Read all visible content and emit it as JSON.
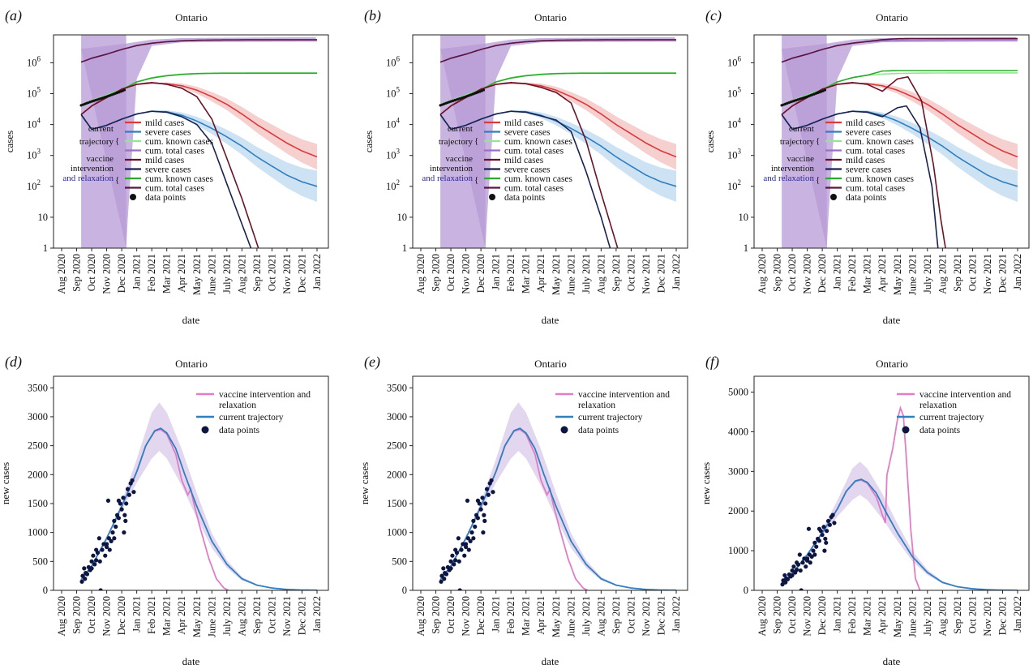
{
  "figure": {
    "panels": [
      {
        "letter": "(a)",
        "title": "Ontario"
      },
      {
        "letter": "(b)",
        "title": "Ontario"
      },
      {
        "letter": "(c)",
        "title": "Ontario"
      },
      {
        "letter": "(d)",
        "title": "Ontario"
      },
      {
        "letter": "(e)",
        "title": "Ontario"
      },
      {
        "letter": "(f)",
        "title": "Ontario"
      }
    ],
    "top_legend": {
      "current_label": [
        "current",
        "trajectory"
      ],
      "vaccine_label": [
        "vaccine",
        "intervention",
        "and relaxation"
      ],
      "current_entries": [
        {
          "label": "mild cases",
          "color": "#d93a3a"
        },
        {
          "label": "severe cases",
          "color": "#2f7fc1"
        },
        {
          "label": "cum. known cases",
          "color": "#8fe88f"
        },
        {
          "label": "cum. total cases",
          "color": "#9b6fc4"
        }
      ],
      "vaccine_entries": [
        {
          "label": "mild cases",
          "color": "#6b1228"
        },
        {
          "label": "severe cases",
          "color": "#1a2350"
        },
        {
          "label": "cum. known cases",
          "color": "#2eaa2e"
        },
        {
          "label": "cum. total cases",
          "color": "#5a1640"
        }
      ],
      "data_label": "data points"
    },
    "bottom_legend": {
      "entries": [
        {
          "label": "vaccine intervention and",
          "label2": "relaxation",
          "color": "#e27cc7"
        },
        {
          "label": "current trajectory",
          "label2": "",
          "color": "#2f7fc1"
        }
      ],
      "data_label": "data points"
    }
  },
  "chart_data": [
    {
      "panel": "(a)",
      "type": "line",
      "title": "Ontario",
      "xlabel": "date",
      "ylabel": "cases",
      "yscale": "log",
      "x_ticks": [
        "Aug 2020",
        "Sep 2020",
        "Oct 2020",
        "Nov 2020",
        "Dec 2020",
        "Jan 2021",
        "Feb 2021",
        "Mar 2021",
        "Apr 2021",
        "May 2021",
        "June 2021",
        "July 2021",
        "Aug 2021",
        "Sep 2021",
        "Oct 2021",
        "Nov 2021",
        "Dec 2021",
        "Jan 2022"
      ],
      "y_ticks": [
        "1",
        "10",
        "10²",
        "10³",
        "10⁴",
        "10⁵",
        "10⁶"
      ],
      "ylim": [
        1,
        8000000
      ],
      "intervention_shade": {
        "x_range": [
          "Sep 2020",
          "Dec 2020"
        ],
        "color": "#b79ad6"
      },
      "x_month_index": [
        1.3,
        2,
        3,
        4,
        5,
        6,
        7,
        8,
        9,
        10,
        11,
        12,
        13,
        14,
        15,
        16,
        17
      ],
      "series": [
        {
          "name": "mild cases",
          "group": "current trajectory",
          "y": [
            21000,
            40000,
            75000,
            140000,
            200000,
            220000,
            210000,
            180000,
            130000,
            80000,
            45000,
            22000,
            10000,
            5000,
            2500,
            1400,
            900
          ]
        },
        {
          "name": "severe cases",
          "group": "current trajectory",
          "y": [
            21000,
            7000,
            9500,
            15000,
            22000,
            27000,
            26000,
            20000,
            13000,
            7500,
            4000,
            2000,
            900,
            450,
            230,
            140,
            100
          ]
        },
        {
          "name": "cum. known cases",
          "group": "current trajectory",
          "y": [
            45000,
            60000,
            90000,
            140000,
            240000,
            330000,
            390000,
            430000,
            450000,
            460000,
            465000,
            468000,
            470000,
            470000,
            470000,
            470000,
            470000
          ]
        },
        {
          "name": "cum. total cases",
          "group": "current trajectory",
          "y": [
            1050000,
            1400000,
            1900000,
            2700000,
            3600000,
            4300000,
            4800000,
            5100000,
            5300000,
            5400000,
            5450000,
            5480000,
            5500000,
            5500000,
            5500000,
            5500000,
            5500000
          ]
        },
        {
          "name": "mild cases",
          "group": "vaccine intervention and relaxation",
          "y": [
            21000,
            40000,
            75000,
            140000,
            200000,
            230000,
            200000,
            150000,
            80000,
            15000,
            800,
            40,
            1.2
          ]
        },
        {
          "name": "severe cases",
          "group": "vaccine intervention and relaxation",
          "y": [
            21000,
            7000,
            9500,
            15000,
            22000,
            27000,
            25000,
            18000,
            10000,
            2500,
            120,
            6,
            0.9
          ]
        },
        {
          "name": "cum. known cases",
          "group": "vaccine intervention and relaxation",
          "y": [
            40000,
            55000,
            85000,
            135000,
            240000,
            320000,
            380000,
            420000,
            445000,
            455000,
            460000,
            460000,
            460000,
            460000,
            460000,
            460000,
            460000
          ]
        },
        {
          "name": "cum. total cases",
          "group": "vaccine intervention and relaxation",
          "y": [
            1050000,
            1400000,
            1900000,
            2700000,
            3600000,
            4300000,
            4800000,
            5150000,
            5350000,
            5450000,
            5500000,
            5520000,
            5530000,
            5530000,
            5530000,
            5530000,
            5530000
          ]
        }
      ]
    },
    {
      "panel": "(b)",
      "type": "line",
      "title": "Ontario",
      "xlabel": "date",
      "ylabel": "cases",
      "yscale": "log",
      "x_ticks": [
        "Aug 2020",
        "Sep 2020",
        "Oct 2020",
        "Nov 2020",
        "Dec 2020",
        "Jan 2021",
        "Feb 2021",
        "Mar 2021",
        "Apr 2021",
        "May 2021",
        "June 2021",
        "July 2021",
        "Aug 2021",
        "Sep 2021",
        "Oct 2021",
        "Nov 2021",
        "Dec 2021",
        "Jan 2022"
      ],
      "y_ticks": [
        "1",
        "10",
        "10²",
        "10³",
        "10⁴",
        "10⁵",
        "10⁶"
      ],
      "ylim": [
        1,
        8000000
      ],
      "intervention_shade": {
        "x_range": [
          "Sep 2020",
          "Dec 2020"
        ],
        "color": "#b79ad6"
      },
      "note": "same as (a); vaccine curves decline from ~May 2021",
      "vaccine_severe_drop_to_1": "Aug 2021",
      "vaccine_mild_drop_to_1": "Sep 2021"
    },
    {
      "panel": "(c)",
      "type": "line",
      "title": "Ontario",
      "xlabel": "date",
      "ylabel": "cases",
      "yscale": "log",
      "x_ticks": [
        "Aug 2020",
        "Sep 2020",
        "Oct 2020",
        "Nov 2020",
        "Dec 2020",
        "Jan 2021",
        "Feb 2021",
        "Mar 2021",
        "Apr 2021",
        "May 2021",
        "June 2021",
        "July 2021",
        "Aug 2021",
        "Sep 2021",
        "Oct 2021",
        "Nov 2021",
        "Dec 2021",
        "Jan 2022"
      ],
      "y_ticks": [
        "1",
        "10",
        "10²",
        "10³",
        "10⁴",
        "10⁵",
        "10⁶"
      ],
      "ylim": [
        1,
        8000000
      ],
      "intervention_shade": {
        "x_range": [
          "Sep 2020",
          "Dec 2020"
        ],
        "color": "#b79ad6"
      },
      "note": "vaccine curves show a second peak near May 2021 (mild ~350000, severe ~40000) then drop to 1 by July/Aug 2021"
    },
    {
      "panel": "(d)",
      "type": "line",
      "title": "Ontario",
      "xlabel": "date",
      "ylabel": "new cases",
      "x_ticks": [
        "Aug 2020",
        "Sep 2020",
        "Oct 2020",
        "Nov 2020",
        "Dec 2020",
        "Jan 2021",
        "Feb 2021",
        "Mar 2021",
        "Apr 2021",
        "May 2021",
        "June 2021",
        "July 2021",
        "Aug 2021",
        "Sep 2021",
        "Oct 2021",
        "Nov 2021",
        "Dec 2021",
        "Jan 2022"
      ],
      "y_ticks": [
        0,
        500,
        1000,
        1500,
        2000,
        2500,
        3000,
        3500
      ],
      "ylim": [
        0,
        3700
      ],
      "x_month_index": [
        1.3,
        2,
        3,
        4,
        5,
        6,
        6.5,
        7,
        8,
        9,
        10,
        11,
        12,
        13,
        14,
        15,
        16,
        17
      ],
      "series": [
        {
          "name": "current trajectory",
          "y": [
            180,
            480,
            900,
            1450,
            2050,
            2650,
            2800,
            2650,
            2100,
            1450,
            850,
            450,
            200,
            90,
            40,
            15,
            5,
            2
          ]
        },
        {
          "name": "vaccine intervention and relaxation",
          "y": [
            180,
            480,
            900,
            1450,
            2050,
            2650,
            2780,
            2600,
            2000,
            1100,
            200,
            0,
            0,
            0,
            0,
            0,
            0,
            0
          ]
        }
      ],
      "band": {
        "upper_peak": 3230,
        "lower_peak": 2430
      }
    },
    {
      "panel": "(e)",
      "type": "line",
      "title": "Ontario",
      "xlabel": "date",
      "ylabel": "new cases",
      "x_ticks": [
        "Aug 2020",
        "Sep 2020",
        "Oct 2020",
        "Nov 2020",
        "Dec 2020",
        "Jan 2021",
        "Feb 2021",
        "Mar 2021",
        "Apr 2021",
        "May 2021",
        "June 2021",
        "July 2021",
        "Aug 2021",
        "Sep 2021",
        "Oct 2021",
        "Nov 2021",
        "Dec 2021",
        "Jan 2022"
      ],
      "y_ticks": [
        0,
        500,
        1000,
        1500,
        2000,
        2500,
        3000,
        3500
      ],
      "ylim": [
        0,
        3700
      ],
      "note": "same shape as (d)"
    },
    {
      "panel": "(f)",
      "type": "line",
      "title": "Ontario",
      "xlabel": "date",
      "ylabel": "new cases",
      "x_ticks": [
        "Aug 2020",
        "Sep 2020",
        "Oct 2020",
        "Nov 2020",
        "Dec 2020",
        "Jan 2021",
        "Feb 2021",
        "Mar 2021",
        "Apr 2021",
        "May 2021",
        "June 2021",
        "July 2021",
        "Aug 2021",
        "Sep 2021",
        "Oct 2021",
        "Nov 2021",
        "Dec 2021",
        "Jan 2022"
      ],
      "y_ticks": [
        0,
        1000,
        2000,
        3000,
        4000,
        5000
      ],
      "ylim": [
        0,
        5400
      ],
      "note": "vaccine curve shows second spike to ~4600 around May 2021"
    }
  ]
}
